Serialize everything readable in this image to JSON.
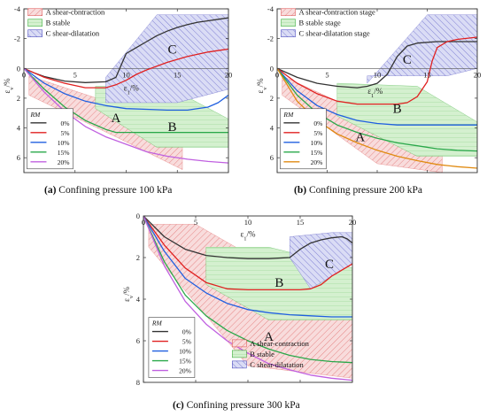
{
  "chart_data": [
    {
      "type": "line",
      "caption_letter": "(a)",
      "caption_text": " Confining pressure 100 kPa",
      "xlabel": "ε1/%",
      "ylabel": "εv/%",
      "xlim": [
        0,
        20
      ],
      "ylim": [
        -4,
        7
      ],
      "x_ticks": [
        "0",
        "5",
        "10",
        "15",
        "20"
      ],
      "y_ticks": [
        "-4",
        "-2",
        "0",
        "2",
        "4",
        "6"
      ],
      "legend_title": "RM",
      "series": [
        {
          "name": "0%",
          "color": "#333333",
          "x": [
            0,
            1,
            2,
            4,
            6,
            8,
            9,
            10,
            11,
            12,
            13,
            14,
            15,
            16,
            17,
            18,
            19,
            20
          ],
          "y": [
            0,
            0.3,
            0.55,
            0.85,
            0.95,
            0.9,
            0.6,
            -1.0,
            -1.4,
            -1.8,
            -2.2,
            -2.5,
            -2.75,
            -2.95,
            -3.1,
            -3.2,
            -3.3,
            -3.4
          ]
        },
        {
          "name": "5%",
          "color": "#e02020",
          "x": [
            0,
            2,
            4,
            6,
            8,
            9,
            10,
            11,
            12,
            14,
            16,
            18,
            20
          ],
          "y": [
            0,
            0.6,
            1.0,
            1.3,
            1.3,
            1.1,
            0.8,
            0.4,
            0.1,
            -0.4,
            -0.8,
            -1.1,
            -1.3
          ]
        },
        {
          "name": "10%",
          "color": "#1f5fe0",
          "x": [
            0,
            2,
            4,
            6,
            8,
            10,
            12,
            14,
            16,
            18,
            19,
            20
          ],
          "y": [
            0,
            1.0,
            1.7,
            2.2,
            2.5,
            2.7,
            2.75,
            2.8,
            2.8,
            2.6,
            2.3,
            1.8
          ]
        },
        {
          "name": "15%",
          "color": "#2aa84a",
          "x": [
            0,
            2,
            4,
            6,
            8,
            9,
            12,
            16,
            20
          ],
          "y": [
            0,
            1.4,
            2.6,
            3.5,
            4.1,
            4.3,
            4.3,
            4.3,
            4.3
          ]
        },
        {
          "name": "20%",
          "color": "#c060e0",
          "x": [
            0,
            2,
            4,
            6,
            8,
            10,
            12,
            14,
            16,
            18,
            20
          ],
          "y": [
            0,
            1.6,
            2.9,
            3.9,
            4.6,
            5.1,
            5.6,
            5.9,
            6.1,
            6.25,
            6.35
          ]
        }
      ],
      "legend_zones": [
        {
          "label": "A shear-contraction",
          "color": "#e06060",
          "fill": "#f6d6d6"
        },
        {
          "label": "B stable",
          "color": "#40b040",
          "fill": "#d2efcc"
        },
        {
          "label": "C shear-dilatation",
          "color": "#5050c0",
          "fill": "#d4d6f2"
        }
      ],
      "zone_labels": [
        "A",
        "B",
        "C"
      ],
      "zones": [
        {
          "x": [
            0.5,
            15.5,
            15.5,
            9,
            0.5
          ],
          "y": [
            0.5,
            3.9,
            6.8,
            4.6,
            1.8
          ]
        },
        {
          "x": [
            7,
            14,
            20,
            20,
            13,
            7
          ],
          "y": [
            1.2,
            1.2,
            3.4,
            5.3,
            5.3,
            2.7
          ]
        },
        {
          "x": [
            8,
            13,
            20,
            20,
            15,
            8
          ],
          "y": [
            0.6,
            -3.6,
            -3.6,
            1.4,
            2.3,
            2.3
          ]
        }
      ],
      "zone_label_pos": [
        [
          9,
          3.6
        ],
        [
          14.5,
          4.2
        ],
        [
          14.5,
          -1.0
        ]
      ],
      "xlabel_pos": [
        10.5,
        1.5
      ],
      "legend_zones_pos": {
        "x": 0.4,
        "y": -3.6
      },
      "legend_rm_pos": {
        "x": 0.3,
        "y": 3.3
      }
    },
    {
      "type": "line",
      "caption_letter": "(b)",
      "caption_text": " Confining pressure 200 kPa",
      "xlabel": "ε1/%",
      "ylabel": "εv/%",
      "xlim": [
        0,
        20
      ],
      "ylim": [
        -4,
        7
      ],
      "x_ticks": [
        "0",
        "5",
        "10",
        "15",
        "20"
      ],
      "y_ticks": [
        "-4",
        "-2",
        "0",
        "2",
        "4",
        "6"
      ],
      "legend_title": "RM",
      "series": [
        {
          "name": "0%",
          "color": "#333333",
          "x": [
            0,
            2,
            4,
            6,
            8,
            9,
            10,
            11,
            12,
            13,
            14,
            16,
            18,
            20
          ],
          "y": [
            0,
            0.6,
            1.0,
            1.2,
            1.3,
            1.2,
            1.0,
            0.4,
            -0.8,
            -1.5,
            -1.7,
            -1.8,
            -1.8,
            -1.8
          ]
        },
        {
          "name": "5%",
          "color": "#e02020",
          "x": [
            0,
            2,
            4,
            6,
            8,
            10,
            12,
            13,
            14,
            15,
            15.5,
            16,
            17,
            18,
            20
          ],
          "y": [
            0,
            1.0,
            1.7,
            2.2,
            2.4,
            2.4,
            2.4,
            2.3,
            1.9,
            0.9,
            -0.5,
            -1.4,
            -1.8,
            -1.95,
            -2.1
          ]
        },
        {
          "name": "10%",
          "color": "#1f5fe0",
          "x": [
            0,
            2,
            4,
            6,
            8,
            10,
            12,
            14,
            16,
            20
          ],
          "y": [
            0,
            1.5,
            2.5,
            3.1,
            3.5,
            3.7,
            3.8,
            3.8,
            3.8,
            3.8
          ]
        },
        {
          "name": "15%",
          "color": "#2aa84a",
          "x": [
            0,
            2,
            4,
            6,
            8,
            10,
            12,
            14,
            16,
            18,
            20
          ],
          "y": [
            0,
            1.8,
            3.0,
            3.8,
            4.3,
            4.7,
            5.0,
            5.2,
            5.4,
            5.5,
            5.55
          ]
        },
        {
          "name": "20%",
          "color": "#e08a10",
          "x": [
            0,
            2,
            4,
            6,
            8,
            10,
            12,
            14,
            16,
            18,
            20
          ],
          "y": [
            0,
            2.2,
            3.5,
            4.4,
            5.0,
            5.5,
            5.9,
            6.2,
            6.45,
            6.6,
            6.7
          ]
        }
      ],
      "legend_zones": [
        {
          "label": "A shear-contraction stage",
          "color": "#e06060",
          "fill": "#f6d6d6"
        },
        {
          "label": "B stable stage",
          "color": "#40b040",
          "fill": "#d2efcc"
        },
        {
          "label": "C shear-dilatation stage",
          "color": "#5050c0",
          "fill": "#d4d6f2"
        }
      ],
      "zone_labels": [
        "A",
        "B",
        "C"
      ],
      "zone_label_pos": [
        [
          8.3,
          4.9
        ],
        [
          12,
          3.0
        ],
        [
          13,
          -0.3
        ]
      ],
      "xlabel_pos": [
        9.8,
        1.7
      ],
      "legend_zones_pos": {
        "x": 0.4,
        "y": -3.6
      },
      "legend_rm_pos": {
        "x": 0.3,
        "y": 3.3
      },
      "zones": [
        {
          "x": [
            0.5,
            6,
            16.5,
            16.5,
            10,
            0.5
          ],
          "y": [
            0.5,
            2.2,
            5.0,
            7.0,
            6.4,
            1.8
          ]
        },
        {
          "x": [
            6,
            14,
            20,
            20,
            14,
            6
          ],
          "y": [
            1.0,
            1.2,
            3.6,
            5.9,
            5.9,
            3.2
          ]
        },
        {
          "x": [
            9,
            15,
            20,
            20,
            17,
            9
          ],
          "y": [
            1.0,
            -3.6,
            -3.6,
            0.0,
            0.5,
            0.5
          ]
        }
      ]
    },
    {
      "type": "line",
      "caption_letter": "(c)",
      "caption_text": " Confining pressure 300 kPa",
      "xlabel": "ε1/%",
      "ylabel": "εv/%",
      "xlim": [
        0,
        20
      ],
      "ylim": [
        0,
        8
      ],
      "x_ticks": [
        "0",
        "5",
        "10",
        "15",
        "20"
      ],
      "y_ticks": [
        "0",
        "2",
        "4",
        "6",
        "8"
      ],
      "legend_title": "RM",
      "series": [
        {
          "name": "0%",
          "color": "#333333",
          "x": [
            0,
            2,
            4,
            6,
            8,
            10,
            12,
            14,
            15,
            16,
            17,
            18,
            19,
            19.5,
            20
          ],
          "y": [
            0,
            1.0,
            1.6,
            1.9,
            2.0,
            2.05,
            2.05,
            2.0,
            1.6,
            1.3,
            1.15,
            1.05,
            1.0,
            1.1,
            1.3
          ]
        },
        {
          "name": "5%",
          "color": "#e02020",
          "x": [
            0,
            2,
            4,
            6,
            8,
            10,
            12,
            14,
            15,
            16,
            17,
            18,
            19,
            20
          ],
          "y": [
            0,
            1.4,
            2.5,
            3.2,
            3.5,
            3.55,
            3.55,
            3.55,
            3.55,
            3.5,
            3.3,
            2.9,
            2.6,
            2.3
          ]
        },
        {
          "name": "10%",
          "color": "#1f5fe0",
          "x": [
            0,
            2,
            4,
            6,
            8,
            10,
            12,
            14,
            16,
            18,
            20
          ],
          "y": [
            0,
            1.7,
            3.0,
            3.7,
            4.2,
            4.5,
            4.65,
            4.75,
            4.8,
            4.85,
            4.85
          ]
        },
        {
          "name": "15%",
          "color": "#2aa84a",
          "x": [
            0,
            2,
            4,
            6,
            8,
            10,
            12,
            14,
            16,
            18,
            20
          ],
          "y": [
            0,
            2.2,
            3.8,
            4.8,
            5.5,
            6.0,
            6.4,
            6.7,
            6.9,
            7.0,
            7.05
          ]
        },
        {
          "name": "20%",
          "color": "#c060e0",
          "x": [
            0,
            2,
            4,
            6,
            8,
            10,
            12,
            14,
            16,
            18,
            20
          ],
          "y": [
            0,
            2.4,
            4.1,
            5.2,
            6.0,
            6.6,
            7.1,
            7.4,
            7.65,
            7.8,
            7.9
          ]
        }
      ],
      "legend_zones": [
        {
          "label": "A shear-contraction",
          "color": "#e06060",
          "fill": "#f6d6d6"
        },
        {
          "label": "B stable",
          "color": "#40b040",
          "fill": "#d2efcc"
        },
        {
          "label": "C shear-dilatation",
          "color": "#5050c0",
          "fill": "#d4d6f2"
        }
      ],
      "zone_labels": [
        "A",
        "B",
        "C"
      ],
      "zone_label_pos": [
        [
          12,
          6.0
        ],
        [
          13,
          3.4
        ],
        [
          17.8,
          2.5
        ]
      ],
      "xlabel_pos": [
        10,
        1.0
      ],
      "legend_zones_pos": {
        "x": 8.5,
        "y": 6.25
      },
      "legend_rm_pos": {
        "x": 0.5,
        "y": 5.3
      },
      "zones": [
        {
          "x": [
            0.5,
            5,
            20,
            20,
            10,
            0.5
          ],
          "y": [
            0.4,
            0.4,
            4.7,
            7.8,
            7.2,
            1.5
          ]
        },
        {
          "x": [
            6,
            12,
            20,
            20,
            12,
            6
          ],
          "y": [
            1.5,
            1.5,
            2.5,
            5.0,
            5.0,
            3.3
          ]
        },
        {
          "x": [
            14,
            18,
            20,
            20,
            16,
            14
          ],
          "y": [
            1.0,
            0.8,
            0.8,
            2.3,
            3.5,
            2.0
          ]
        }
      ]
    }
  ]
}
